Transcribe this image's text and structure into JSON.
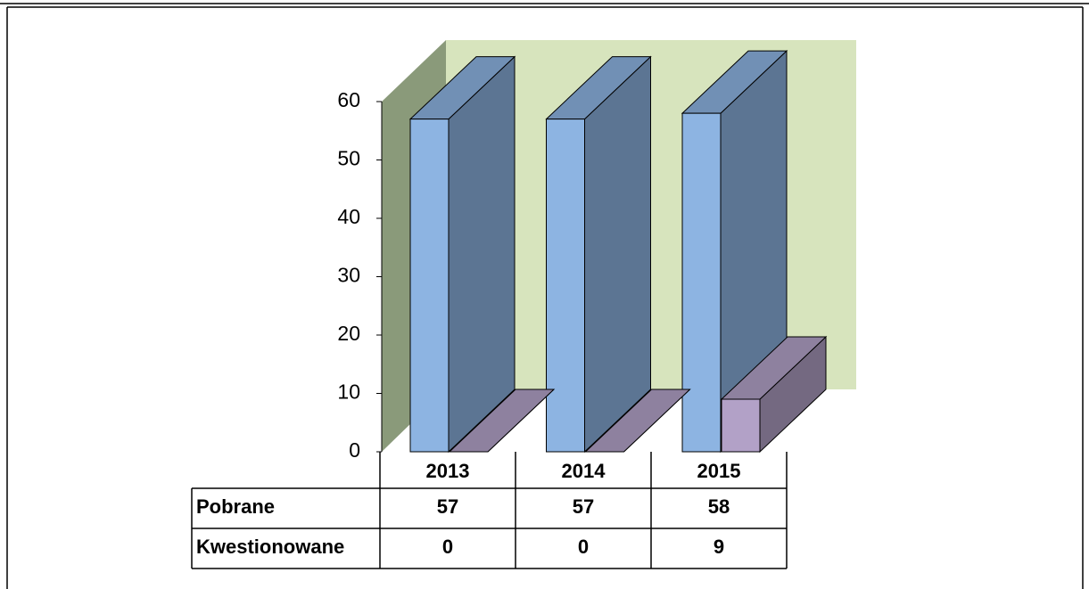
{
  "chart_data": {
    "type": "bar3d",
    "categories": [
      "2013",
      "2014",
      "2015"
    ],
    "series": [
      {
        "name": "Pobrane",
        "color": "#8db4e2",
        "values": [
          57,
          57,
          58
        ]
      },
      {
        "name": "Kwestionowane",
        "color": "#b2a1c7",
        "values": [
          0,
          0,
          9
        ]
      }
    ],
    "ylim": [
      0,
      60
    ],
    "yticks": [
      0,
      10,
      20,
      30,
      40,
      50,
      60
    ]
  }
}
